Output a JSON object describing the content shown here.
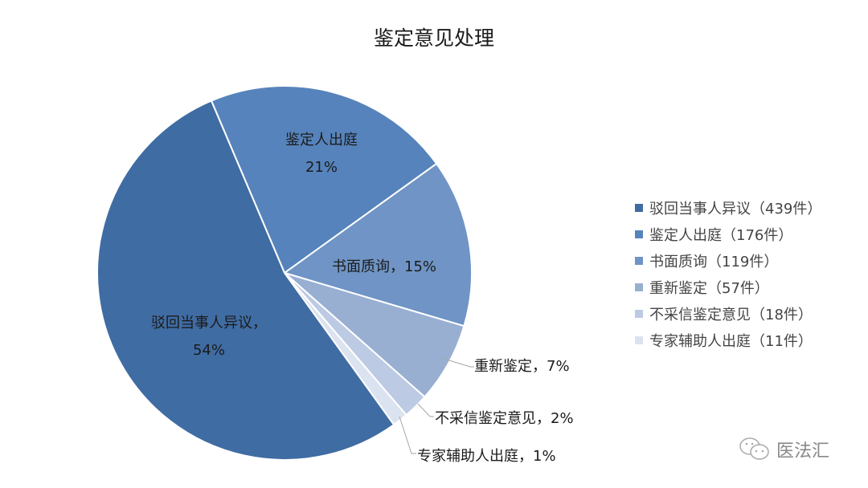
{
  "chart_data": {
    "type": "pie",
    "title": "鉴定意见处理",
    "categories": [
      "驳回当事人异议",
      "鉴定人出庭",
      "书面质询",
      "重新鉴定",
      "不采信鉴定意见",
      "专家辅助人出庭"
    ],
    "values": [
      439,
      176,
      119,
      57,
      18,
      11
    ],
    "percent_labels": [
      "54%",
      "21%",
      "15%",
      "7%",
      "2%",
      "1%"
    ],
    "colors": [
      "#3f6ca3",
      "#5683bb",
      "#6f94c5",
      "#98afd2",
      "#bccae3",
      "#dce3f0"
    ],
    "legend": [
      "驳回当事人异议（439件）",
      "鉴定人出庭（176件）",
      "书面质询（119件）",
      "重新鉴定（57件）",
      "不采信鉴定意见（18件）",
      "专家辅助人出庭（11件）"
    ],
    "legend_position": "right"
  },
  "labels": {
    "s0_name": "驳回当事人异议，",
    "s0_pct": "54%",
    "s1_name": "鉴定人出庭",
    "s1_pct": "21%",
    "s2": "书面质询，15%",
    "s3": "重新鉴定，7%",
    "s4": "不采信鉴定意见，2%",
    "s5": "专家辅助人出庭，1%"
  },
  "watermark": {
    "icon": "wechat-icon",
    "text": "医法汇"
  }
}
